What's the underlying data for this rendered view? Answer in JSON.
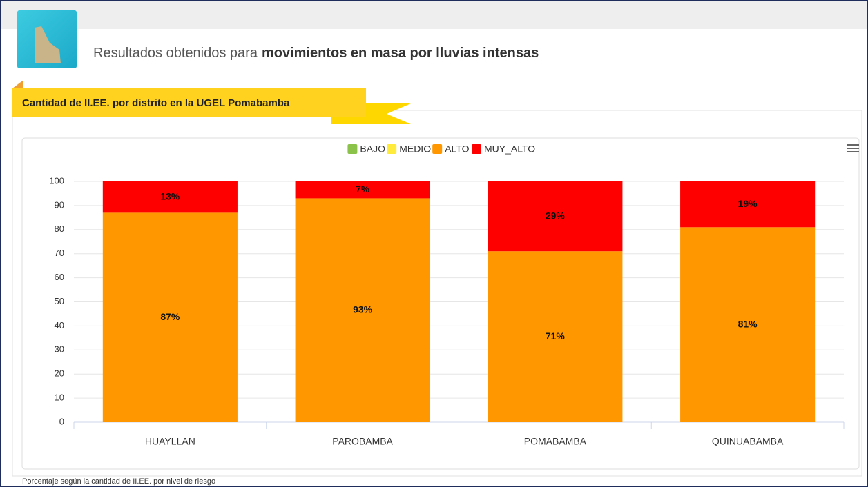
{
  "header": {
    "title_prefix": "Resultados obtenidos para",
    "title_bold": "movimientos en masa por lluvias intensas"
  },
  "ribbon": {
    "label": "Cantidad de II.EE. por distrito en la UGEL Pomabamba"
  },
  "chart_data": {
    "type": "stacked_bar",
    "categories": [
      "HUAYLLAN",
      "PAROBAMBA",
      "POMABAMBA",
      "QUINUABAMBA"
    ],
    "series": [
      {
        "name": "BAJO",
        "color": "#8bc34a",
        "values": [
          0,
          0,
          0,
          0
        ]
      },
      {
        "name": "MEDIO",
        "color": "#ffeb3b",
        "values": [
          0,
          0,
          0,
          0
        ]
      },
      {
        "name": "ALTO",
        "color": "#ff9800",
        "values": [
          87,
          93,
          71,
          81
        ],
        "value_labels": [
          "87%",
          "93%",
          "71%",
          "81%"
        ]
      },
      {
        "name": "MUY_ALTO",
        "color": "#ff0000",
        "values": [
          13,
          7,
          29,
          19
        ],
        "value_labels": [
          "13%",
          "7%",
          "29%",
          "19%"
        ]
      }
    ],
    "ylim": [
      0,
      100
    ],
    "yticks": [
      0,
      10,
      20,
      30,
      40,
      50,
      60,
      70,
      80,
      90,
      100
    ],
    "grid": true,
    "legend": "top"
  },
  "footer": {
    "note": "Porcentaje según la cantidad de II.EE. por nivel de riesgo"
  }
}
